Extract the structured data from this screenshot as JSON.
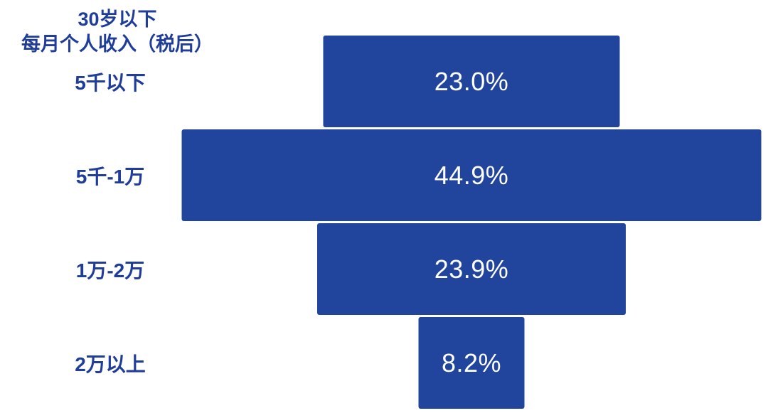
{
  "title": {
    "line1": "30岁以下",
    "line2": "每月个人收入（税后）"
  },
  "colors": {
    "bar_fill": "#21449C",
    "label_text": "#1F3D99",
    "value_text": "#FFFFFF",
    "background": "#FFFFFF"
  },
  "chart_data": {
    "type": "bar",
    "subtype": "centered-funnel-horizontal",
    "title": "30岁以下 每月个人收入（税后）",
    "categories": [
      "5千以下",
      "5千-1万",
      "1万-2万",
      "2万以上"
    ],
    "values": [
      23.0,
      44.9,
      23.9,
      8.2
    ],
    "value_labels": [
      "23.0%",
      "44.9%",
      "23.9%",
      "8.2%"
    ],
    "unit": "%",
    "xlabel": "",
    "ylabel": "每月个人收入（税后）",
    "legend": false,
    "grid": false,
    "axis_visible": false,
    "value_label_position": "inside-center",
    "bars_centered": true
  }
}
